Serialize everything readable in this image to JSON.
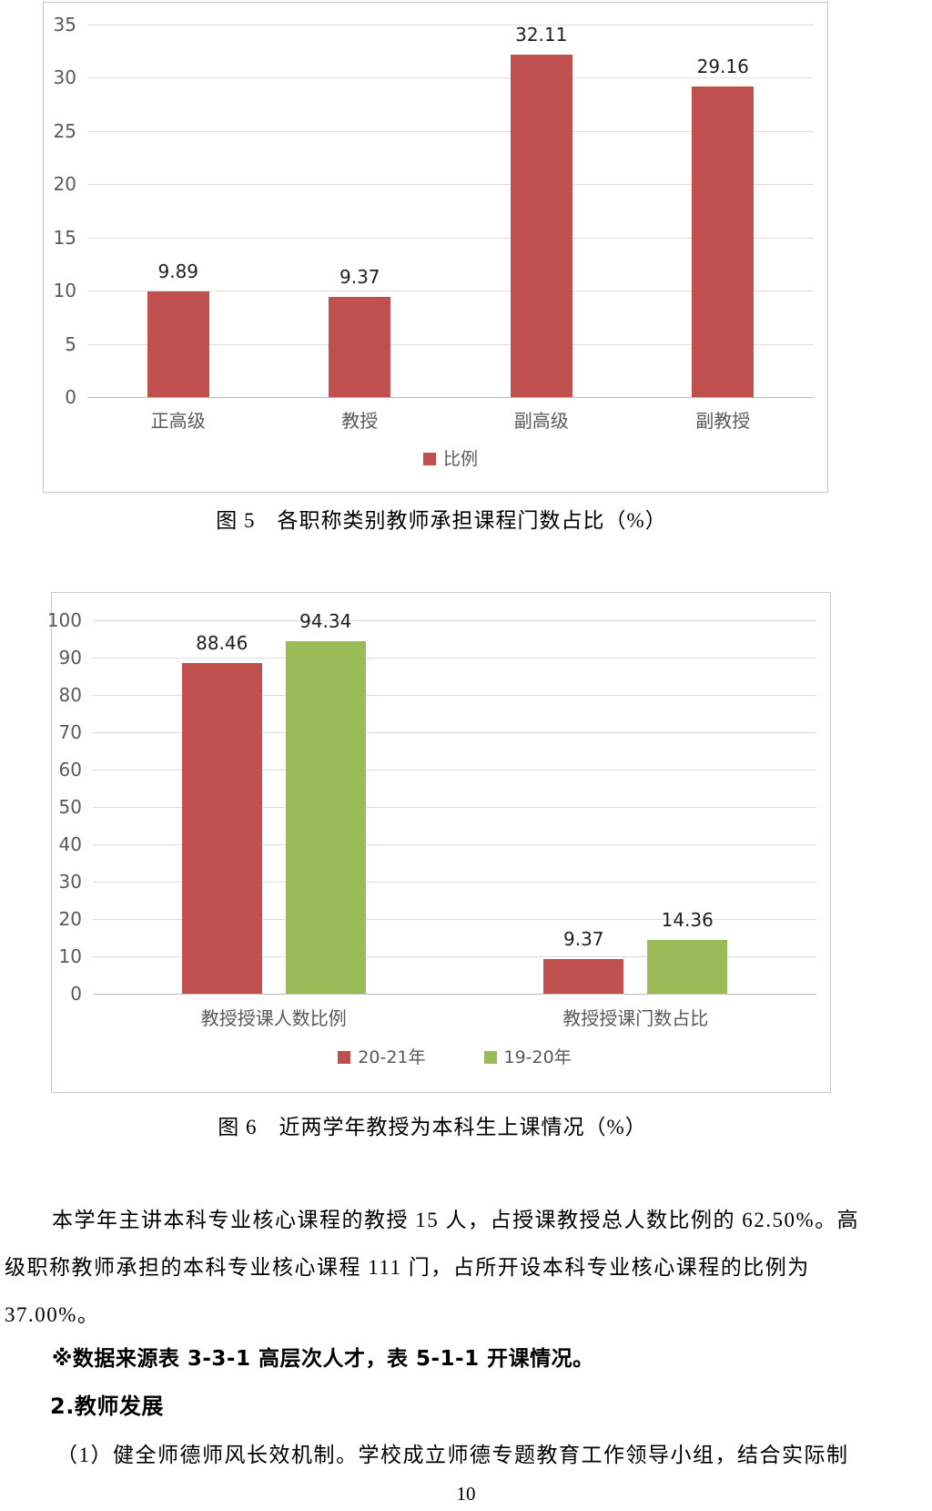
{
  "page": {
    "number": "10"
  },
  "figure5": {
    "caption": "图 5　各职称类别教师承担课程门数占比（%）"
  },
  "figure6": {
    "caption": "图 6　近两学年教授为本科生上课情况（%）"
  },
  "paragraphs": {
    "line1": "本学年主讲本科专业核心课程的教授 15 人，占授课教授总人数比例的 62.50%。高",
    "line2": "级职称教师承担的本科专业核心课程 111 门，占所开设本科专业核心课程的比例为",
    "line3": "37.00%。",
    "note": "※数据来源表 3-3-1 高层次人才，表 5-1-1 开课情况。",
    "heading": "2.教师发展",
    "item1": "（1）健全师德师风长效机制。学校成立师德专题教育工作领导小组，结合实际制"
  },
  "colors": {
    "bar_red": "#c0504d",
    "bar_green": "#9bbb59",
    "axis_text": "#595959",
    "gridline": "#dcdcdc"
  },
  "chart_data": [
    {
      "type": "bar",
      "title": "",
      "categories": [
        "正高级",
        "教授",
        "副高级",
        "副教授"
      ],
      "values": [
        9.89,
        9.37,
        32.11,
        29.16
      ],
      "xlabel": "",
      "ylabel": "",
      "ylim": [
        0,
        35
      ],
      "ytick_step": 5,
      "grid": true,
      "legend": [
        {
          "label": "比例",
          "color": "#c0504d"
        }
      ],
      "legend_position": "bottom",
      "bar_color": "#c0504d"
    },
    {
      "type": "bar",
      "title": "",
      "categories": [
        "教授授课人数比例",
        "教授授课门数占比"
      ],
      "series": [
        {
          "name": "20-21年",
          "color": "#c0504d",
          "values": [
            88.46,
            9.37
          ]
        },
        {
          "name": "19-20年",
          "color": "#9bbb59",
          "values": [
            94.34,
            14.36
          ]
        }
      ],
      "xlabel": "",
      "ylabel": "",
      "ylim": [
        0,
        100
      ],
      "ytick_step": 10,
      "grid": true,
      "legend_position": "bottom"
    }
  ]
}
